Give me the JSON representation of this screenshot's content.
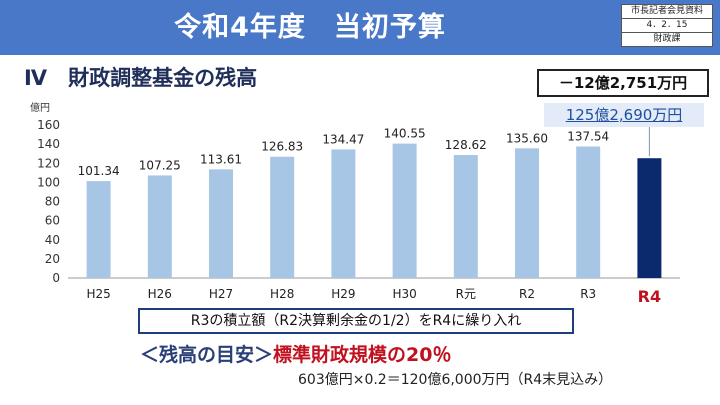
{
  "header": {
    "title": "令和4年度　当初予算",
    "source_lines": [
      "市長記者会見資料",
      "4．2．15",
      "財政課"
    ]
  },
  "section_title": "Ⅳ　財政調整基金の残高",
  "chart_data": {
    "type": "bar",
    "unit_label": "億円",
    "categories": [
      "H25",
      "H26",
      "H27",
      "H28",
      "H29",
      "H30",
      "R元",
      "R2",
      "R3",
      "R4"
    ],
    "values": [
      101.34,
      107.25,
      113.61,
      126.83,
      134.47,
      140.55,
      128.62,
      135.6,
      137.54,
      125.269
    ],
    "value_labels": [
      "101.34",
      "107.25",
      "113.61",
      "126.83",
      "134.47",
      "140.55",
      "128.62",
      "135.60",
      "137.54",
      ""
    ],
    "highlight_index": 9,
    "ylim": [
      0,
      160
    ],
    "yticks": [
      0,
      20,
      40,
      60,
      80,
      100,
      120,
      140,
      160
    ],
    "colors": {
      "bar": "#a7c6e6",
      "highlight": "#0b2a6e",
      "highlight_label": "#c0121e",
      "axis": "#999999"
    }
  },
  "callouts": {
    "decrease": "－12億2,751万円",
    "total": "125億2,690万円"
  },
  "note": "R3の積立額（R2決算剰余金の1/2）をR4に繰り入れ",
  "guideline": {
    "prefix": "＜残高の目安＞",
    "emphasis": "標準財政規模の20％"
  },
  "calculation": "603億円×0.2＝120億6,000万円（R4末見込み）"
}
